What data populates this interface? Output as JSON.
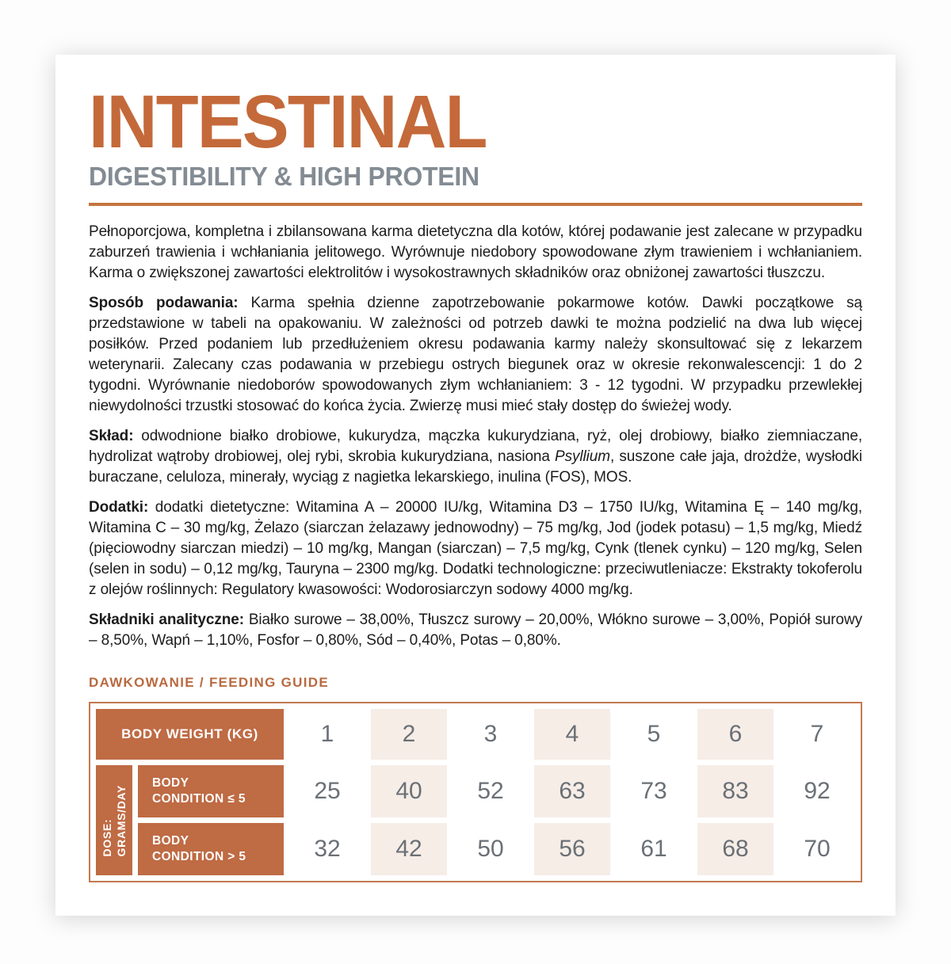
{
  "header": {
    "product_name": "INTESTINAL",
    "product_subtitle": "DIGESTIBILITY & HIGH PROTEIN"
  },
  "colors": {
    "accent_orange": "#C4693A",
    "table_orange": "#BF6B44",
    "subtitle_gray": "#838B93",
    "shade_beige": "#F6EDE7",
    "number_gray": "#6A7076"
  },
  "paragraphs": {
    "intro": "Pełnoporcjowa, kompletna i zbilansowana karma dietetyczna dla kotów, której podawanie jest zalecane w przypadku zaburzeń trawienia i wchłaniania jelitowego. Wyrównuje niedobory spowodowane złym trawieniem i wchłanianiem. Karma o zwiększonej zawartości elektrolitów i wysokostrawnych składników oraz obniżonej zawartości tłuszczu.",
    "sposob": {
      "lead": "Sposób podawania:",
      "text": " Karma spełnia dzienne zapotrzebowanie pokarmowe kotów. Dawki początkowe są przedstawione w tabeli na opakowaniu. W zależności od potrzeb dawki te można podzielić na dwa lub więcej posiłków. Przed podaniem lub przedłużeniem okresu podawania karmy należy skonsultować się z lekarzem weterynarii. Zalecany czas podawania w przebiegu ostrych biegunek oraz w okresie rekonwalescencji: 1 do 2 tygodni. Wyrównanie niedoborów spowodowanych złym wchłanianiem: 3 - 12 tygodni. W przypadku przewlekłej niewydolności trzustki stosować do końca życia. Zwierzę musi mieć stały dostęp do świeżej wody."
    },
    "sklad": {
      "lead": "Skład:",
      "text_before": " odwodnione białko drobiowe, kukurydza, mączka kukurydziana, ryż, olej drobiowy, białko ziemniaczane, hydrolizat wątroby drobiowej, olej rybi, skrobia kukurydziana, nasiona ",
      "italic_term": "Psyllium",
      "text_after": ", suszone całe jaja, drożdże, wysłodki buraczane, celuloza, minerały, wyciąg z nagietka lekarskiego, inulina (FOS), MOS."
    },
    "dodatki": {
      "lead": "Dodatki:",
      "text": " dodatki dietetyczne: Witamina A – 20000 IU/kg, Witamina D3 – 1750 IU/kg, Witamina Ę – 140 mg/kg, Witamina C – 30 mg/kg, Żelazo (siarczan żelazawy jednowodny) – 75 mg/kg, Jod (jodek potasu) – 1,5 mg/kg, Miedź (pięciowodny siarczan miedzi) – 10 mg/kg, Mangan (siarczan) – 7,5 mg/kg, Cynk (tlenek cynku) – 120 mg/kg, Selen (selen in sodu) – 0,12 mg/kg, Tauryna – 2300 mg/kg. Dodatki technologiczne: przeciwutleniacze: Ekstrakty tokoferolu z olejów roślinnych: Regulatory kwasowości: Wodorosiarczyn sodowy 4000 mg/kg."
    },
    "analityczne": {
      "lead": "Składniki analityczne:",
      "text": " Białko surowe – 38,00%, Tłuszcz surowy – 20,00%, Włókno surowe – 3,00%, Popiół surowy – 8,50%, Wapń – 1,10%, Fosfor – 0,80%, Sód – 0,40%, Potas – 0,80%."
    }
  },
  "feeding_guide": {
    "heading": "DAWKOWANIE / FEEDING GUIDE",
    "corner_label": "BODY WEIGHT (KG)",
    "dose_axis": {
      "line1": "DOSE:",
      "line2": "GRAMS/DAY"
    },
    "weights": [
      "1",
      "2",
      "3",
      "4",
      "5",
      "6",
      "7"
    ],
    "rows": [
      {
        "label_line1": "BODY",
        "label_line2": "CONDITION ≤ 5",
        "values": [
          "25",
          "40",
          "52",
          "63",
          "73",
          "83",
          "92"
        ]
      },
      {
        "label_line1": "BODY",
        "label_line2": "CONDITION > 5",
        "values": [
          "32",
          "42",
          "50",
          "56",
          "61",
          "68",
          "70"
        ]
      }
    ]
  }
}
